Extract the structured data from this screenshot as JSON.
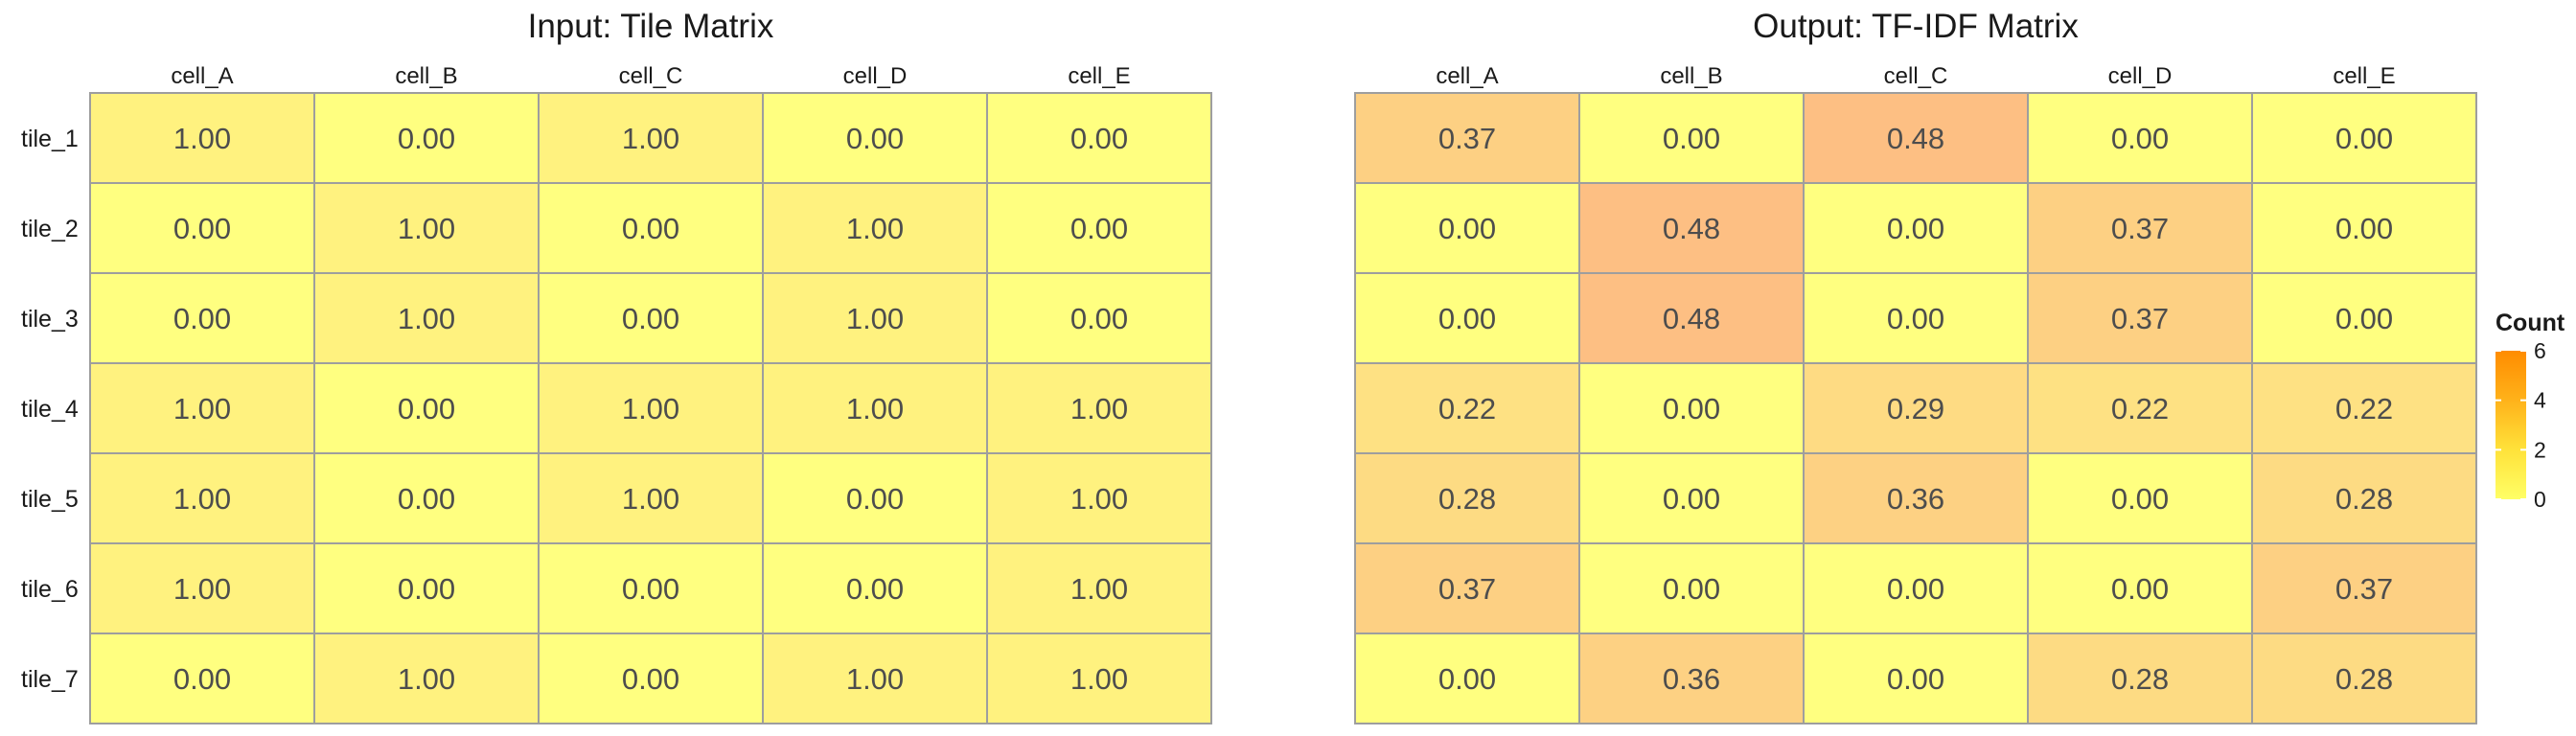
{
  "chart_data": [
    {
      "type": "heatmap",
      "title": "Input: Tile Matrix",
      "columns": [
        "cell_A",
        "cell_B",
        "cell_C",
        "cell_D",
        "cell_E"
      ],
      "rows": [
        "tile_1",
        "tile_2",
        "tile_3",
        "tile_4",
        "tile_5",
        "tile_6",
        "tile_7"
      ],
      "values": [
        [
          1.0,
          0.0,
          1.0,
          0.0,
          0.0
        ],
        [
          0.0,
          1.0,
          0.0,
          1.0,
          0.0
        ],
        [
          0.0,
          1.0,
          0.0,
          1.0,
          0.0
        ],
        [
          1.0,
          0.0,
          1.0,
          1.0,
          1.0
        ],
        [
          1.0,
          0.0,
          1.0,
          0.0,
          1.0
        ],
        [
          1.0,
          0.0,
          0.0,
          0.0,
          1.0
        ],
        [
          0.0,
          1.0,
          0.0,
          1.0,
          1.0
        ]
      ],
      "value_labels": [
        [
          "1.00",
          "0.00",
          "1.00",
          "0.00",
          "0.00"
        ],
        [
          "0.00",
          "1.00",
          "0.00",
          "1.00",
          "0.00"
        ],
        [
          "0.00",
          "1.00",
          "0.00",
          "1.00",
          "0.00"
        ],
        [
          "1.00",
          "0.00",
          "1.00",
          "1.00",
          "1.00"
        ],
        [
          "1.00",
          "0.00",
          "1.00",
          "0.00",
          "1.00"
        ],
        [
          "1.00",
          "0.00",
          "0.00",
          "0.00",
          "1.00"
        ],
        [
          "0.00",
          "1.00",
          "0.00",
          "1.00",
          "1.00"
        ]
      ],
      "cell_colors": [
        [
          "#fff27f",
          "#ffff80",
          "#fff27f",
          "#ffff80",
          "#ffff80"
        ],
        [
          "#ffff80",
          "#fff27f",
          "#ffff80",
          "#fff27f",
          "#ffff80"
        ],
        [
          "#ffff80",
          "#fff27f",
          "#ffff80",
          "#fff27f",
          "#ffff80"
        ],
        [
          "#fff27f",
          "#ffff80",
          "#fff27f",
          "#fff27f",
          "#fff27f"
        ],
        [
          "#fff27f",
          "#ffff80",
          "#fff27f",
          "#ffff80",
          "#fff27f"
        ],
        [
          "#fff27f",
          "#ffff80",
          "#ffff80",
          "#ffff80",
          "#fff27f"
        ],
        [
          "#ffff80",
          "#fff27f",
          "#ffff80",
          "#fff27f",
          "#fff27f"
        ]
      ]
    },
    {
      "type": "heatmap",
      "title": "Output: TF-IDF Matrix",
      "columns": [
        "cell_A",
        "cell_B",
        "cell_C",
        "cell_D",
        "cell_E"
      ],
      "rows": [
        "tile_1",
        "tile_2",
        "tile_3",
        "tile_4",
        "tile_5",
        "tile_6",
        "tile_7"
      ],
      "values": [
        [
          0.37,
          0.0,
          0.48,
          0.0,
          0.0
        ],
        [
          0.0,
          0.48,
          0.0,
          0.37,
          0.0
        ],
        [
          0.0,
          0.48,
          0.0,
          0.37,
          0.0
        ],
        [
          0.22,
          0.0,
          0.29,
          0.22,
          0.22
        ],
        [
          0.28,
          0.0,
          0.36,
          0.0,
          0.28
        ],
        [
          0.37,
          0.0,
          0.0,
          0.0,
          0.37
        ],
        [
          0.0,
          0.36,
          0.0,
          0.28,
          0.28
        ]
      ],
      "value_labels": [
        [
          "0.37",
          "0.00",
          "0.48",
          "0.00",
          "0.00"
        ],
        [
          "0.00",
          "0.48",
          "0.00",
          "0.37",
          "0.00"
        ],
        [
          "0.00",
          "0.48",
          "0.00",
          "0.37",
          "0.00"
        ],
        [
          "0.22",
          "0.00",
          "0.29",
          "0.22",
          "0.22"
        ],
        [
          "0.28",
          "0.00",
          "0.36",
          "0.00",
          "0.28"
        ],
        [
          "0.37",
          "0.00",
          "0.00",
          "0.00",
          "0.37"
        ],
        [
          "0.00",
          "0.36",
          "0.00",
          "0.28",
          "0.28"
        ]
      ],
      "cell_colors": [
        [
          "#fdd083",
          "#ffff80",
          "#fdbf83",
          "#ffff80",
          "#ffff80"
        ],
        [
          "#ffff80",
          "#fdbf83",
          "#ffff80",
          "#fdd083",
          "#ffff80"
        ],
        [
          "#ffff80",
          "#fdbf83",
          "#ffff80",
          "#fdd083",
          "#ffff80"
        ],
        [
          "#fee183",
          "#ffff80",
          "#fedb83",
          "#fee183",
          "#fee183"
        ],
        [
          "#fddb83",
          "#ffff80",
          "#fdd183",
          "#ffff80",
          "#fddb83"
        ],
        [
          "#fdd083",
          "#ffff80",
          "#ffff80",
          "#ffff80",
          "#fdd083"
        ],
        [
          "#ffff80",
          "#fdd183",
          "#ffff80",
          "#fddb83",
          "#fddb83"
        ]
      ]
    }
  ],
  "legend": {
    "title": "Count",
    "ticks": [
      "0",
      "2",
      "4",
      "6"
    ],
    "tick_values": [
      0,
      2,
      4,
      6
    ],
    "min": 0,
    "max": 6,
    "colors": [
      "#ffff66",
      "#ffe23a",
      "#ffb21a",
      "#ff8c00"
    ]
  }
}
